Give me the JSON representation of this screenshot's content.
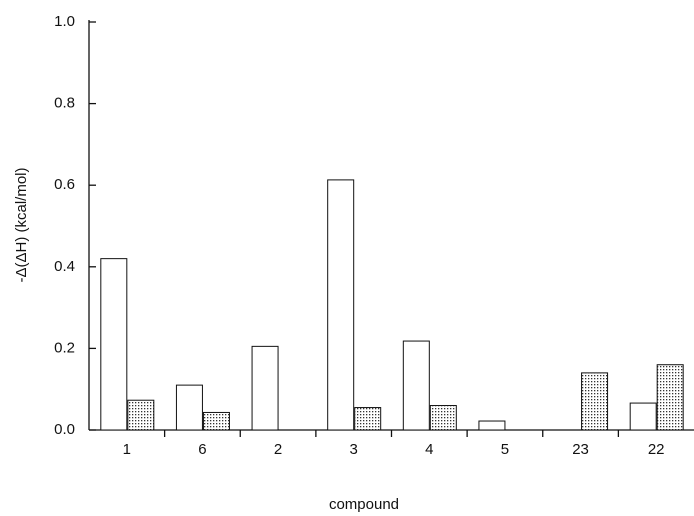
{
  "chart_data": {
    "type": "bar",
    "xlabel": "compound",
    "ylabel": "-Δ(ΔH) (kcal/mol)",
    "categories": [
      "1",
      "6",
      "2",
      "3",
      "4",
      "5",
      "23",
      "22"
    ],
    "series": [
      {
        "color": "#ffffff",
        "values": [
          0.42,
          0.11,
          0.205,
          0.613,
          0.218,
          0.022,
          null,
          0.066
        ]
      },
      {
        "color": "#c8c8c8",
        "values": [
          0.073,
          0.043,
          null,
          0.055,
          0.06,
          null,
          0.14,
          0.16
        ]
      }
    ],
    "ylim": [
      0,
      1.0
    ],
    "yticks": [
      {
        "value": 0,
        "label": "0.0"
      },
      {
        "value": 0.2,
        "label": "0.2"
      },
      {
        "value": 0.4,
        "label": "0.4"
      },
      {
        "value": 0.6,
        "label": "0.6"
      },
      {
        "value": 0.8,
        "label": "0.8"
      },
      {
        "value": 1.0,
        "label": "1.0"
      }
    ]
  }
}
